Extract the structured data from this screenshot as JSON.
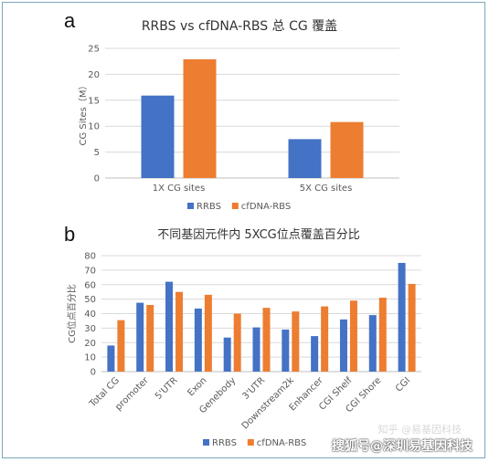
{
  "panels": {
    "a": "a",
    "b": "b"
  },
  "watermark": "搜狐号@深圳易基因科技",
  "watermark_faint": "知乎 @易基因科技",
  "colors": {
    "RRBS": "#4472C4",
    "cfDNA-RBS": "#ED7D31"
  },
  "chart_data": [
    {
      "type": "bar",
      "title": "RRBS vs cfDNA-RBS 总 CG 覆盖",
      "ylabel": "CG Sites（M）",
      "xlabel": "",
      "categories": [
        "1X CG sites",
        "5X CG sites"
      ],
      "series": [
        {
          "name": "RRBS",
          "values": [
            15.9,
            7.5
          ]
        },
        {
          "name": "cfDNA-RBS",
          "values": [
            22.9,
            10.8
          ]
        }
      ],
      "ylim": [
        0,
        25
      ],
      "yticks": [
        0,
        5,
        10,
        15,
        20,
        25
      ],
      "grid": true,
      "legend": "bottom"
    },
    {
      "type": "bar",
      "title": "不同基因元件内 5XCG位点覆盖百分比",
      "ylabel": "CG位点百分比",
      "xlabel": "",
      "categories": [
        "Total CG",
        "promoter",
        "5'UTR",
        "Exon",
        "Genebody",
        "3'UTR",
        "Downstream2k",
        "Enhancer",
        "CGI Shelf",
        "CGI Shore",
        "CGI"
      ],
      "series": [
        {
          "name": "RRBS",
          "values": [
            18,
            47.5,
            62,
            43.5,
            23.5,
            30.5,
            29,
            24.5,
            36,
            39,
            75
          ]
        },
        {
          "name": "cfDNA-RBS",
          "values": [
            35.5,
            46,
            55,
            53,
            40,
            44,
            41.5,
            45,
            49,
            51,
            60.5
          ]
        }
      ],
      "ylim": [
        0,
        80
      ],
      "yticks": [
        0,
        10,
        20,
        30,
        40,
        50,
        60,
        70,
        80
      ],
      "grid": true,
      "legend": "bottom"
    }
  ]
}
